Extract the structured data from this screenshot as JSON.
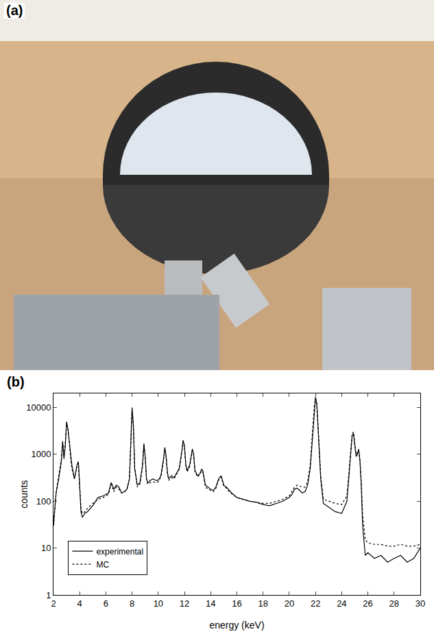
{
  "panel_a": {
    "label": "(a)"
  },
  "chart_data": {
    "type": "line",
    "panel_label": "(b)",
    "x_label": "energy (keV)",
    "y_label": "counts",
    "log": "y",
    "grid": false,
    "legend": "lower left",
    "xlim": [
      2,
      30
    ],
    "xticks": [
      2,
      4,
      6,
      8,
      10,
      12,
      14,
      16,
      18,
      20,
      22,
      24,
      26,
      28,
      30
    ],
    "ylim": [
      1,
      20000
    ],
    "yticks": [
      1,
      10,
      100,
      1000,
      10000
    ],
    "x": [
      2.0,
      2.2,
      2.4,
      2.6,
      2.7,
      2.8,
      2.9,
      3.0,
      3.1,
      3.2,
      3.3,
      3.4,
      3.6,
      3.8,
      3.9,
      4.0,
      4.1,
      4.2,
      4.4,
      4.6,
      5.0,
      5.4,
      5.8,
      6.0,
      6.2,
      6.4,
      6.5,
      6.6,
      6.8,
      7.0,
      7.2,
      7.4,
      7.6,
      7.8,
      7.9,
      8.0,
      8.1,
      8.2,
      8.4,
      8.6,
      8.8,
      8.9,
      9.0,
      9.1,
      9.2,
      9.4,
      9.6,
      9.8,
      10.0,
      10.2,
      10.4,
      10.5,
      10.6,
      10.7,
      10.8,
      11.0,
      11.2,
      11.4,
      11.6,
      11.8,
      11.9,
      12.0,
      12.1,
      12.2,
      12.4,
      12.6,
      12.7,
      12.8,
      12.9,
      13.0,
      13.2,
      13.3,
      13.4,
      13.5,
      13.6,
      13.8,
      14.0,
      14.2,
      14.4,
      14.6,
      14.8,
      14.9,
      15.0,
      15.2,
      15.4,
      15.6,
      16.0,
      16.5,
      17.0,
      17.5,
      18.0,
      18.5,
      19.0,
      19.5,
      20.0,
      20.2,
      20.4,
      20.6,
      20.8,
      21.0,
      21.2,
      21.4,
      21.6,
      21.8,
      21.9,
      22.0,
      22.1,
      22.2,
      22.4,
      22.6,
      23.0,
      23.5,
      24.0,
      24.4,
      24.6,
      24.8,
      24.9,
      25.0,
      25.1,
      25.2,
      25.3,
      25.4,
      25.5,
      25.6,
      25.8,
      26.0,
      26.5,
      27.0,
      27.5,
      28.0,
      28.5,
      29.0,
      29.5,
      30.0
    ],
    "series": [
      {
        "name": "experimental",
        "color": "#000000",
        "line_style": "solid",
        "values": [
          30,
          150,
          300,
          700,
          1900,
          800,
          1500,
          5000,
          3500,
          2000,
          1000,
          600,
          300,
          600,
          700,
          200,
          60,
          45,
          55,
          60,
          80,
          120,
          130,
          140,
          150,
          250,
          220,
          180,
          220,
          200,
          150,
          160,
          180,
          300,
          2000,
          10000,
          4000,
          500,
          220,
          250,
          600,
          1700,
          900,
          300,
          250,
          280,
          300,
          280,
          280,
          350,
          800,
          1400,
          900,
          400,
          300,
          350,
          320,
          400,
          500,
          1200,
          2000,
          1500,
          600,
          450,
          600,
          1300,
          1000,
          450,
          400,
          350,
          400,
          480,
          450,
          300,
          220,
          200,
          180,
          170,
          200,
          300,
          350,
          280,
          220,
          200,
          170,
          150,
          120,
          110,
          100,
          95,
          85,
          80,
          90,
          100,
          120,
          140,
          180,
          190,
          170,
          150,
          160,
          220,
          500,
          3000,
          9000,
          16000,
          12000,
          4000,
          300,
          90,
          75,
          60,
          55,
          100,
          500,
          2500,
          2800,
          1500,
          900,
          1000,
          1300,
          700,
          200,
          30,
          7,
          8,
          6,
          7,
          5,
          6,
          7,
          5,
          6,
          10
        ]
      },
      {
        "name": "MC",
        "color": "#000000",
        "line_style": "dot",
        "values": [
          30,
          150,
          350,
          800,
          1800,
          900,
          1800,
          4500,
          3500,
          2000,
          900,
          500,
          300,
          550,
          650,
          200,
          70,
          55,
          60,
          70,
          90,
          110,
          120,
          130,
          140,
          230,
          200,
          160,
          200,
          180,
          150,
          160,
          170,
          300,
          2000,
          9000,
          4500,
          500,
          200,
          230,
          550,
          1600,
          900,
          300,
          230,
          250,
          260,
          250,
          260,
          330,
          750,
          1300,
          900,
          400,
          280,
          320,
          300,
          380,
          480,
          1100,
          1900,
          1500,
          600,
          420,
          550,
          1200,
          1000,
          430,
          380,
          330,
          380,
          450,
          420,
          280,
          200,
          180,
          170,
          160,
          190,
          280,
          330,
          260,
          210,
          190,
          160,
          145,
          120,
          110,
          100,
          95,
          90,
          90,
          100,
          110,
          130,
          160,
          200,
          220,
          210,
          200,
          200,
          260,
          600,
          3500,
          10000,
          17000,
          12000,
          4000,
          350,
          110,
          100,
          90,
          85,
          130,
          600,
          2800,
          3000,
          1600,
          1000,
          1100,
          1200,
          700,
          250,
          50,
          15,
          13,
          12,
          12,
          11,
          11,
          12,
          11,
          11,
          12
        ]
      }
    ]
  }
}
